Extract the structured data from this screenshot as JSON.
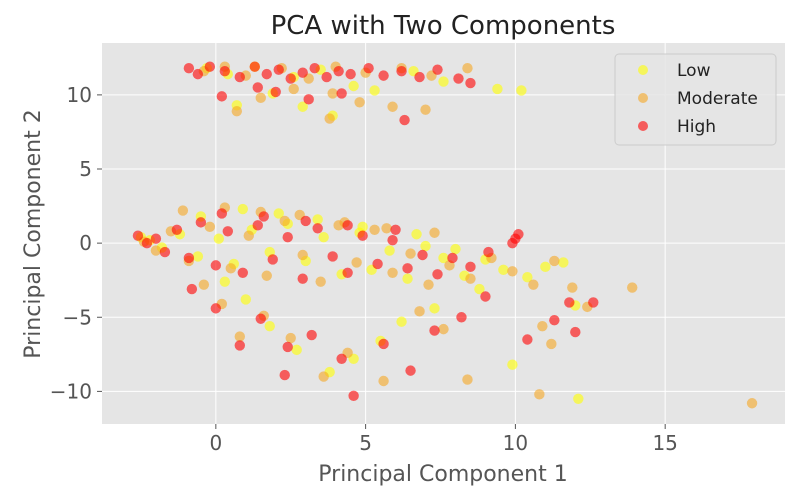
{
  "chart_data": {
    "type": "scatter",
    "title": "PCA with Two Components",
    "xlabel": "Principal Component 1",
    "ylabel": "Principal Component 2",
    "xlim": [
      -3.8,
      19.0
    ],
    "ylim": [
      -12.2,
      13.5
    ],
    "xticks": [
      0,
      5,
      10,
      15
    ],
    "yticks": [
      -10,
      -5,
      0,
      5,
      10
    ],
    "xtick_labels": [
      "0",
      "5",
      "10",
      "15"
    ],
    "ytick_labels": [
      "−10",
      "−5",
      "0",
      "5",
      "10"
    ],
    "grid": true,
    "legend_position": "top-right",
    "series": [
      {
        "name": "Low",
        "color": "#ffff00",
        "points": [
          [
            -2.5,
            0.4
          ],
          [
            -2.2,
            0.2
          ],
          [
            -1.8,
            -0.3
          ],
          [
            -1.2,
            0.6
          ],
          [
            -0.6,
            -0.9
          ],
          [
            0.1,
            0.3
          ],
          [
            0.6,
            -1.4
          ],
          [
            1.2,
            0.9
          ],
          [
            1.8,
            -0.6
          ],
          [
            2.4,
            1.3
          ],
          [
            3.0,
            -1.2
          ],
          [
            3.6,
            0.4
          ],
          [
            4.2,
            -2.1
          ],
          [
            4.8,
            0.7
          ],
          [
            5.2,
            -1.8
          ],
          [
            5.8,
            -0.5
          ],
          [
            6.4,
            -2.4
          ],
          [
            7.0,
            -0.2
          ],
          [
            7.6,
            -1.0
          ],
          [
            8.3,
            -2.2
          ],
          [
            9.0,
            -1.1
          ],
          [
            9.6,
            -1.8
          ],
          [
            10.4,
            -2.3
          ],
          [
            11.0,
            -1.6
          ],
          [
            11.6,
            -1.3
          ],
          [
            12.0,
            -4.2
          ],
          [
            12.1,
            -10.5
          ],
          [
            9.9,
            -8.2
          ],
          [
            8.8,
            -3.1
          ],
          [
            7.3,
            -4.4
          ],
          [
            6.2,
            -5.3
          ],
          [
            5.5,
            -6.6
          ],
          [
            4.6,
            -7.8
          ],
          [
            3.8,
            -8.7
          ],
          [
            2.7,
            -7.2
          ],
          [
            1.8,
            -5.6
          ],
          [
            1.0,
            -3.8
          ],
          [
            0.3,
            -2.6
          ],
          [
            -0.5,
            1.8
          ],
          [
            0.9,
            2.3
          ],
          [
            2.1,
            2.0
          ],
          [
            3.4,
            1.6
          ],
          [
            4.9,
            1.1
          ],
          [
            6.7,
            0.6
          ],
          [
            8.0,
            -0.4
          ],
          [
            -0.3,
            11.8
          ],
          [
            0.4,
            11.4
          ],
          [
            1.3,
            11.9
          ],
          [
            2.6,
            11.2
          ],
          [
            3.5,
            11.7
          ],
          [
            4.6,
            10.6
          ],
          [
            5.3,
            10.3
          ],
          [
            6.6,
            11.6
          ],
          [
            7.6,
            10.9
          ],
          [
            9.4,
            10.4
          ],
          [
            10.2,
            10.3
          ],
          [
            1.9,
            10.1
          ],
          [
            2.9,
            9.2
          ],
          [
            3.9,
            8.6
          ],
          [
            0.7,
            9.3
          ]
        ]
      },
      {
        "name": "Moderate",
        "color": "#f5a623",
        "points": [
          [
            -2.4,
            0.1
          ],
          [
            -2.0,
            -0.5
          ],
          [
            -1.5,
            0.8
          ],
          [
            -0.9,
            -1.2
          ],
          [
            -0.2,
            1.1
          ],
          [
            0.5,
            -1.7
          ],
          [
            1.1,
            0.5
          ],
          [
            1.7,
            -2.2
          ],
          [
            2.3,
            1.5
          ],
          [
            2.9,
            -0.8
          ],
          [
            3.5,
            -2.6
          ],
          [
            4.1,
            1.2
          ],
          [
            4.7,
            -1.3
          ],
          [
            5.3,
            0.9
          ],
          [
            5.9,
            -2.0
          ],
          [
            6.5,
            -0.7
          ],
          [
            7.1,
            -2.8
          ],
          [
            7.8,
            -1.5
          ],
          [
            8.5,
            -2.4
          ],
          [
            9.2,
            -1.0
          ],
          [
            9.9,
            -1.9
          ],
          [
            10.6,
            -2.8
          ],
          [
            11.3,
            -1.2
          ],
          [
            11.9,
            -3.0
          ],
          [
            12.4,
            -4.3
          ],
          [
            10.9,
            -5.6
          ],
          [
            10.8,
            -10.2
          ],
          [
            11.2,
            -6.8
          ],
          [
            13.9,
            -3.0
          ],
          [
            17.9,
            -10.8
          ],
          [
            8.4,
            -9.2
          ],
          [
            7.6,
            -5.8
          ],
          [
            6.8,
            -4.6
          ],
          [
            5.6,
            -9.3
          ],
          [
            4.4,
            -7.4
          ],
          [
            3.6,
            -9.0
          ],
          [
            2.5,
            -6.4
          ],
          [
            1.6,
            -4.9
          ],
          [
            0.8,
            -6.3
          ],
          [
            0.2,
            -4.1
          ],
          [
            -0.4,
            -2.8
          ],
          [
            -1.1,
            2.2
          ],
          [
            0.3,
            2.4
          ],
          [
            1.5,
            2.1
          ],
          [
            2.8,
            1.9
          ],
          [
            4.3,
            1.4
          ],
          [
            5.7,
            1.0
          ],
          [
            7.3,
            0.7
          ],
          [
            -0.4,
            11.6
          ],
          [
            0.3,
            11.9
          ],
          [
            1.0,
            11.3
          ],
          [
            2.2,
            11.8
          ],
          [
            3.1,
            11.1
          ],
          [
            4.0,
            11.9
          ],
          [
            5.0,
            11.5
          ],
          [
            6.2,
            11.8
          ],
          [
            7.2,
            11.3
          ],
          [
            8.4,
            11.8
          ],
          [
            1.5,
            9.8
          ],
          [
            2.6,
            10.4
          ],
          [
            3.9,
            10.1
          ],
          [
            4.8,
            9.5
          ],
          [
            5.9,
            9.2
          ],
          [
            7.0,
            9.0
          ],
          [
            3.8,
            8.4
          ],
          [
            0.7,
            8.9
          ]
        ]
      },
      {
        "name": "High",
        "color": "#ff0000",
        "points": [
          [
            -2.6,
            0.5
          ],
          [
            -2.3,
            0.0
          ],
          [
            -2.0,
            0.3
          ],
          [
            -1.7,
            -0.6
          ],
          [
            -1.3,
            0.9
          ],
          [
            -0.9,
            -1.0
          ],
          [
            -0.5,
            1.4
          ],
          [
            0.0,
            -1.5
          ],
          [
            0.4,
            0.8
          ],
          [
            0.9,
            -2.0
          ],
          [
            1.4,
            1.2
          ],
          [
            1.9,
            -1.1
          ],
          [
            2.4,
            0.4
          ],
          [
            2.9,
            -2.4
          ],
          [
            3.4,
            1.0
          ],
          [
            3.9,
            -0.9
          ],
          [
            4.4,
            -2.0
          ],
          [
            4.9,
            0.5
          ],
          [
            5.4,
            -1.4
          ],
          [
            5.9,
            0.2
          ],
          [
            6.4,
            -1.7
          ],
          [
            6.9,
            -0.8
          ],
          [
            7.4,
            -2.1
          ],
          [
            7.9,
            -1.0
          ],
          [
            8.5,
            -1.6
          ],
          [
            9.1,
            -0.6
          ],
          [
            10.0,
            0.3
          ],
          [
            10.1,
            0.6
          ],
          [
            9.9,
            0.0
          ],
          [
            11.8,
            -4.0
          ],
          [
            12.6,
            -4.0
          ],
          [
            12.0,
            -6.0
          ],
          [
            11.3,
            -5.2
          ],
          [
            10.4,
            -6.5
          ],
          [
            9.0,
            -3.6
          ],
          [
            8.2,
            -5.0
          ],
          [
            7.3,
            -5.9
          ],
          [
            6.5,
            -8.6
          ],
          [
            5.6,
            -6.8
          ],
          [
            4.6,
            -10.3
          ],
          [
            4.2,
            -7.8
          ],
          [
            3.2,
            -6.2
          ],
          [
            2.4,
            -7.0
          ],
          [
            1.5,
            -5.1
          ],
          [
            0.8,
            -6.9
          ],
          [
            0.0,
            -4.4
          ],
          [
            -0.8,
            -3.1
          ],
          [
            0.2,
            2.0
          ],
          [
            1.6,
            1.8
          ],
          [
            3.0,
            1.5
          ],
          [
            4.4,
            1.2
          ],
          [
            6.0,
            0.9
          ],
          [
            2.3,
            -8.9
          ],
          [
            -0.9,
            11.8
          ],
          [
            -0.6,
            11.4
          ],
          [
            -0.2,
            11.9
          ],
          [
            0.3,
            11.6
          ],
          [
            0.8,
            11.2
          ],
          [
            1.3,
            11.9
          ],
          [
            1.7,
            11.4
          ],
          [
            2.1,
            11.7
          ],
          [
            2.5,
            11.1
          ],
          [
            2.9,
            11.5
          ],
          [
            3.3,
            11.8
          ],
          [
            3.7,
            11.2
          ],
          [
            4.1,
            11.6
          ],
          [
            4.5,
            11.4
          ],
          [
            5.1,
            11.8
          ],
          [
            5.6,
            11.3
          ],
          [
            6.2,
            11.6
          ],
          [
            6.8,
            11.2
          ],
          [
            7.4,
            11.7
          ],
          [
            8.1,
            11.1
          ],
          [
            8.5,
            10.8
          ],
          [
            2.0,
            10.2
          ],
          [
            3.1,
            9.7
          ],
          [
            1.4,
            10.5
          ],
          [
            6.3,
            8.3
          ],
          [
            4.2,
            10.1
          ],
          [
            0.2,
            9.9
          ]
        ]
      }
    ]
  }
}
